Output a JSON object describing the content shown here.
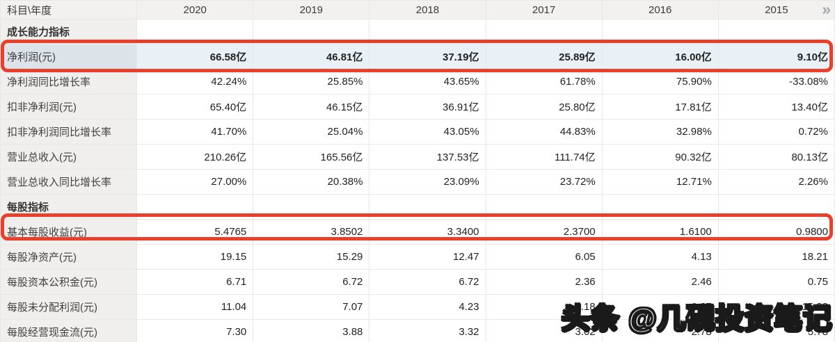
{
  "table": {
    "corner_label": "科目\\年度",
    "years": [
      "2020",
      "2019",
      "2018",
      "2017",
      "2016",
      "2015"
    ],
    "more_label": "»",
    "rows": [
      {
        "label": "成长能力指标",
        "type": "section",
        "values": [
          "",
          "",
          "",
          "",
          "",
          ""
        ]
      },
      {
        "label": "净利润(元)",
        "type": "highlight",
        "values": [
          "66.58亿",
          "46.81亿",
          "37.19亿",
          "25.89亿",
          "16.00亿",
          "9.10亿"
        ]
      },
      {
        "label": "净利润同比增长率",
        "type": "normal",
        "values": [
          "42.24%",
          "25.85%",
          "43.65%",
          "61.78%",
          "75.90%",
          "-33.08%"
        ]
      },
      {
        "label": "扣非净利润(元)",
        "type": "normal",
        "values": [
          "65.40亿",
          "46.15亿",
          "36.91亿",
          "25.80亿",
          "17.81亿",
          "13.40亿"
        ]
      },
      {
        "label": "扣非净利润同比增长率",
        "type": "normal",
        "values": [
          "41.70%",
          "25.04%",
          "43.05%",
          "44.83%",
          "32.98%",
          "0.72%"
        ]
      },
      {
        "label": "营业总收入(元)",
        "type": "normal",
        "values": [
          "210.26亿",
          "165.56亿",
          "137.53亿",
          "111.74亿",
          "90.32亿",
          "80.13亿"
        ]
      },
      {
        "label": "营业总收入同比增长率",
        "type": "normal",
        "values": [
          "27.00%",
          "20.38%",
          "23.09%",
          "23.72%",
          "12.71%",
          "2.26%"
        ]
      },
      {
        "label": "每股指标",
        "type": "section",
        "values": [
          "",
          "",
          "",
          "",
          "",
          ""
        ]
      },
      {
        "label": "基本每股收益(元)",
        "type": "boxed",
        "values": [
          "5.4765",
          "3.8502",
          "3.3400",
          "2.3700",
          "1.6100",
          "0.9800"
        ]
      },
      {
        "label": "每股净资产(元)",
        "type": "normal",
        "values": [
          "19.15",
          "15.29",
          "12.47",
          "6.05",
          "4.13",
          "18.21"
        ]
      },
      {
        "label": "每股资本公积金(元)",
        "type": "normal",
        "values": [
          "6.71",
          "6.72",
          "6.72",
          "2.36",
          "2.46",
          "0.75"
        ]
      },
      {
        "label": "每股未分配利润(元)",
        "type": "normal",
        "values": [
          "11.04",
          "7.07",
          "4.23",
          "2.18",
          "0.27",
          "15.88"
        ]
      },
      {
        "label": "每股经营现金流(元)",
        "type": "normal",
        "values": [
          "7.30",
          "3.88",
          "3.32",
          "3.02",
          "2.78",
          "5.78"
        ]
      }
    ]
  },
  "watermark": {
    "text": "头条 @几砚投资笔记"
  },
  "colors": {
    "annotation_red": "#e8402c",
    "header_bg": "#f2f1ef",
    "label_column_bg": "#f0efed",
    "highlight_label_bg": "#dce3e9",
    "highlight_value_bg": "#e9f1f7",
    "border": "#e9e7e4",
    "more_icon": "#a2a8b0"
  }
}
